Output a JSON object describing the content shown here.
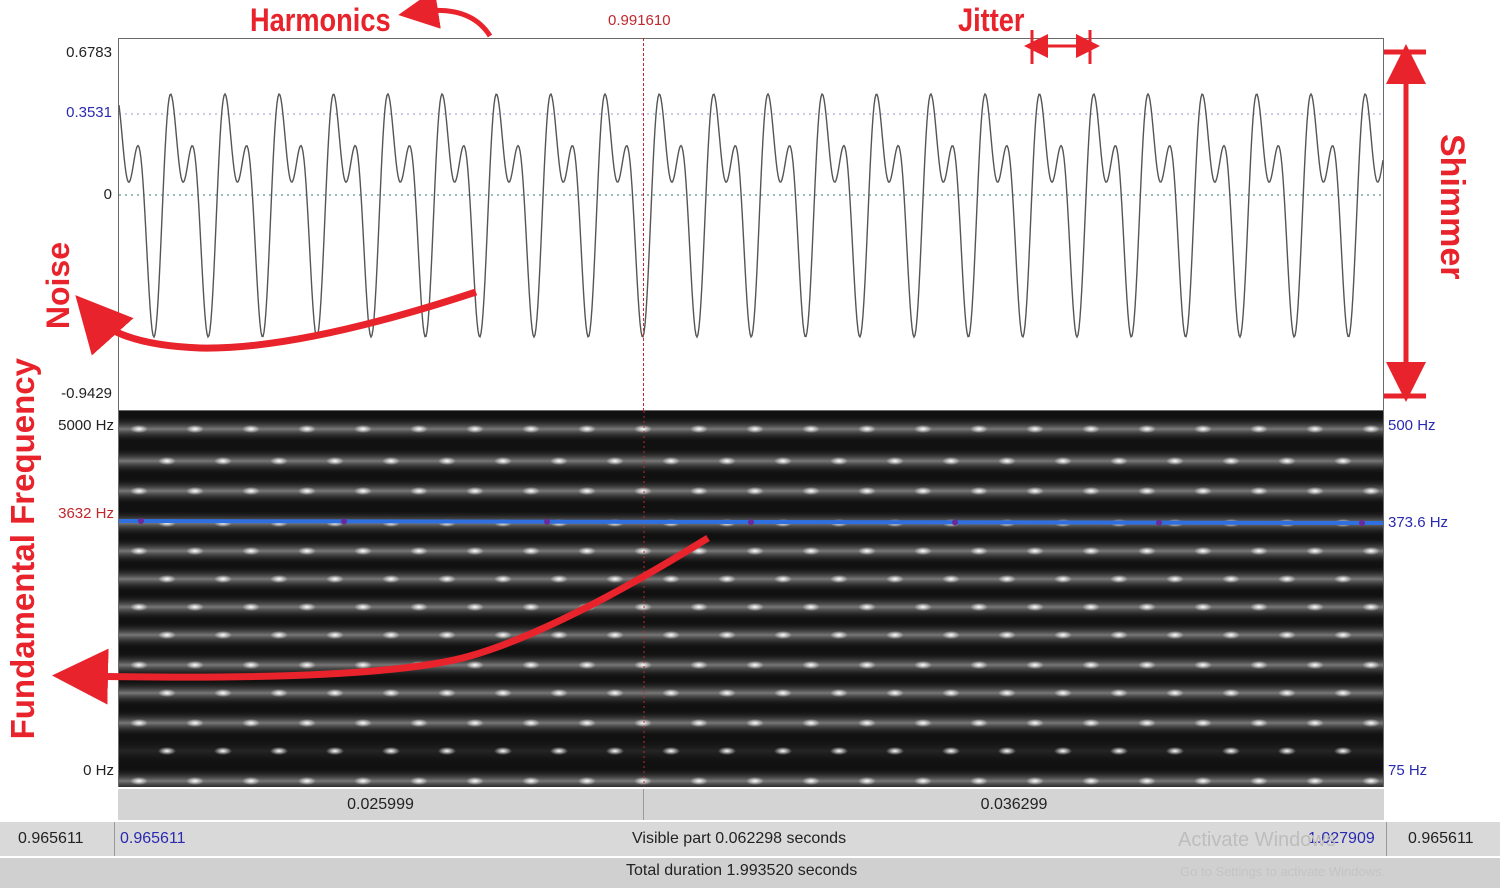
{
  "cursor": {
    "time": "0.991610"
  },
  "waveform": {
    "y_max": "0.6783",
    "y_sel": "0.3531",
    "y_zero": "0",
    "y_min": "-0.9429"
  },
  "spectrogram": {
    "left_top": "5000 Hz",
    "left_mid": "3632 Hz",
    "left_bottom": "0 Hz",
    "right_top": "500 Hz",
    "right_mid": "373.6 Hz",
    "right_bottom": "75 Hz"
  },
  "annotations": {
    "harmonics": "Harmonics",
    "jitter": "Jitter",
    "shimmer": "Shimmer",
    "noise": "Noise",
    "fundamental": "Fundamental Frequency"
  },
  "selection_bar": {
    "left_segment": "0.025999",
    "right_segment": "0.036299"
  },
  "visible_bar": {
    "left_outer": "0.965611",
    "left_inner": "0.965611",
    "label": "Visible part 0.062298 seconds",
    "right_inner": "1.027909",
    "right_outer": "0.965611"
  },
  "total_bar": {
    "label": "Total duration 1.993520 seconds"
  },
  "watermark": {
    "line1": "Activate Windows",
    "line2": "Go to Settings to activate Windows."
  },
  "colors": {
    "annotation": "#e8232b",
    "pitch": "#2f6fe0",
    "axis_blue": "#2a2ab0"
  }
}
